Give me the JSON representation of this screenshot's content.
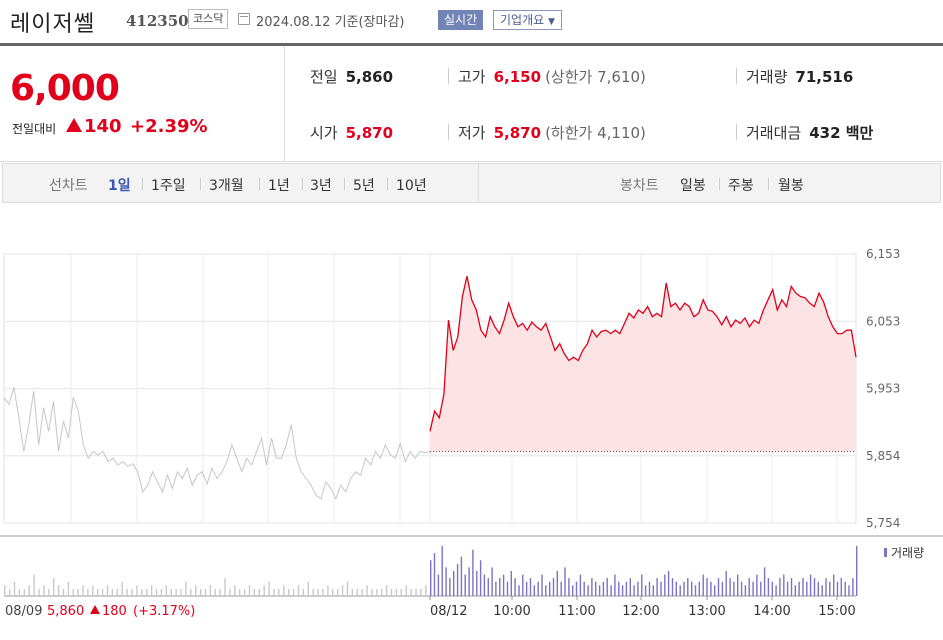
{
  "header": {
    "name": "레이저쎌",
    "code": "412350",
    "market": "코스닥",
    "date": "2024.08.12 기준(장마감)",
    "realtime_label": "실시간",
    "company_info_label": "기업개요"
  },
  "quote": {
    "price": "6,000",
    "change_label": "전일대비",
    "change": "140",
    "change_pct": "+2.39%",
    "prev_label": "전일",
    "prev": "5,860",
    "open_label": "시가",
    "open": "5,870",
    "high_label": "고가",
    "high": "6,150",
    "upper_limit": "(상한가 7,610)",
    "low_label": "저가",
    "low": "5,870",
    "lower_limit": "(하한가 4,110)",
    "volume_label": "거래량",
    "volume": "71,516",
    "amount_label": "거래대금",
    "amount": "432 백만"
  },
  "controls": {
    "line_chart_label": "선차트",
    "periods": [
      "1일",
      "1주일",
      "3개월",
      "1년",
      "3년",
      "5년",
      "10년"
    ],
    "selected_period": "1일",
    "candle_chart_label": "봉차트",
    "candle_periods": [
      "일봉",
      "주봉",
      "월봉"
    ]
  },
  "chart_data": {
    "type": "line",
    "y_ticks": [
      "6,153",
      "6,053",
      "5,953",
      "5,854",
      "5,754"
    ],
    "ylim": [
      5754,
      6153
    ],
    "reference_price": 5860,
    "x_ticks": [
      "08/12",
      "10:00",
      "11:00",
      "12:00",
      "13:00",
      "14:00",
      "15:00"
    ],
    "prev_day": {
      "date": "08/09",
      "close": "5,860",
      "change": "180",
      "change_pct": "(+3.17%)",
      "values": [
        5940,
        5930,
        5955,
        5910,
        5860,
        5900,
        5950,
        5870,
        5925,
        5890,
        5935,
        5860,
        5905,
        5880,
        5940,
        5920,
        5870,
        5850,
        5860,
        5855,
        5860,
        5845,
        5850,
        5840,
        5845,
        5838,
        5842,
        5830,
        5800,
        5810,
        5830,
        5815,
        5800,
        5825,
        5805,
        5830,
        5820,
        5835,
        5810,
        5825,
        5830,
        5812,
        5835,
        5820,
        5830,
        5845,
        5870,
        5850,
        5830,
        5850,
        5840,
        5860,
        5880,
        5840,
        5880,
        5850,
        5850,
        5870,
        5900,
        5850,
        5830,
        5820,
        5810,
        5795,
        5790,
        5815,
        5805,
        5790,
        5810,
        5800,
        5820,
        5830,
        5825,
        5850,
        5840,
        5860,
        5850,
        5870,
        5855,
        5850,
        5872,
        5845,
        5860,
        5850,
        5860,
        5858,
        5860
      ]
    },
    "series": [
      {
        "values": [
          5890,
          5920,
          5910,
          5945,
          6055,
          6010,
          6030,
          6090,
          6120,
          6085,
          6070,
          6040,
          6030,
          6060,
          6045,
          6035,
          6055,
          6080,
          6060,
          6045,
          6050,
          6040,
          6052,
          6045,
          6040,
          6050,
          6030,
          6010,
          6020,
          6005,
          5995,
          6000,
          5995,
          6010,
          6020,
          6040,
          6030,
          6038,
          6040,
          6035,
          6040,
          6035,
          6050,
          6065,
          6058,
          6070,
          6065,
          6075,
          6060,
          6065,
          6060,
          6110,
          6075,
          6080,
          6070,
          6080,
          6075,
          6060,
          6065,
          6085,
          6070,
          6068,
          6060,
          6048,
          6060,
          6045,
          6055,
          6050,
          6058,
          6045,
          6055,
          6050,
          6070,
          6085,
          6100,
          6070,
          6085,
          6075,
          6105,
          6095,
          6090,
          6088,
          6080,
          6075,
          6095,
          6082,
          6060,
          6045,
          6035,
          6035,
          6040,
          6040,
          6000
        ]
      }
    ],
    "volume_label": "거래량",
    "volume": [
      3,
      2,
      4,
      2,
      2,
      3,
      6,
      2,
      3,
      2,
      5,
      3,
      2,
      4,
      2,
      2,
      3,
      2,
      3,
      2,
      2,
      3,
      2,
      2,
      4,
      2,
      2,
      3,
      2,
      2,
      3,
      2,
      2,
      3,
      2,
      2,
      2,
      4,
      2,
      3,
      2,
      2,
      3,
      2,
      2,
      5,
      2,
      3,
      2,
      2,
      3,
      2,
      2,
      3,
      4,
      2,
      2,
      3,
      2,
      2,
      3,
      2,
      4,
      2,
      2,
      2,
      3,
      2,
      2,
      3,
      4,
      2,
      2,
      2,
      3,
      2,
      2,
      2,
      3,
      2,
      2,
      2,
      3,
      2,
      2,
      2,
      3,
      10,
      12,
      6,
      14,
      8,
      5,
      7,
      9,
      11,
      6,
      8,
      13,
      7,
      10,
      6,
      5,
      8,
      4,
      5,
      6,
      4,
      7,
      5,
      3,
      6,
      4,
      5,
      3,
      4,
      6,
      3,
      4,
      5,
      7,
      4,
      8,
      5,
      3,
      4,
      6,
      4,
      3,
      5,
      4,
      3,
      4,
      5,
      3,
      6,
      4,
      3,
      4,
      5,
      3,
      4,
      6,
      3,
      4,
      3,
      5,
      4,
      6,
      7,
      5,
      4,
      3,
      4,
      5,
      4,
      3,
      4,
      6,
      5,
      4,
      3,
      5,
      4,
      7,
      5,
      4,
      6,
      4,
      3,
      5,
      4,
      6,
      4,
      8,
      5,
      4,
      3,
      5,
      6,
      4,
      5,
      3,
      4,
      5,
      4,
      6,
      5,
      4,
      3,
      5,
      4,
      6,
      4,
      5,
      4,
      3,
      5,
      14
    ]
  },
  "colors": {
    "up": "#e0001b",
    "fill": "#fde3e3",
    "prev_line": "#c6c6c6",
    "volume_prev": "#c9c9c9",
    "volume_today": "#7b73c8"
  }
}
